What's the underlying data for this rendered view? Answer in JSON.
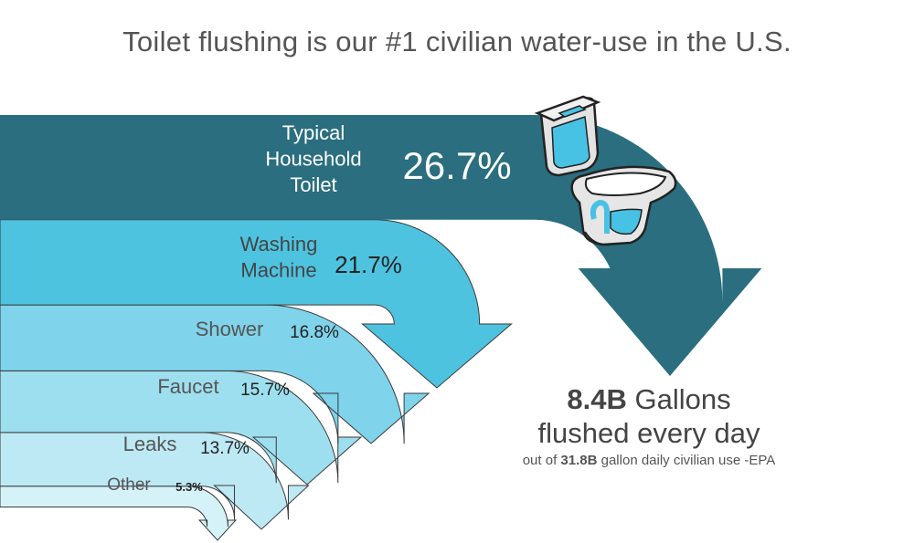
{
  "title": "Toilet flushing is our #1 civilian water-use in the U.S.",
  "chart_data": {
    "type": "bar",
    "unit": "%",
    "categories": [
      "Typical Household Toilet",
      "Washing Machine",
      "Shower",
      "Faucet",
      "Leaks",
      "Other"
    ],
    "labels": [
      [
        "Typical",
        "Household",
        "Toilet"
      ],
      [
        "Washing",
        "Machine"
      ],
      [
        "Shower"
      ],
      [
        "Faucet"
      ],
      [
        "Leaks"
      ],
      [
        "Other"
      ]
    ],
    "values": [
      26.7,
      21.7,
      16.8,
      15.7,
      13.7,
      5.3
    ],
    "value_labels": [
      "26.7%",
      "21.7%",
      "16.8%",
      "15.7%",
      "13.7%",
      "5.3%"
    ],
    "colors": [
      "#2a6e7f",
      "#4ec3e0",
      "#7fd3ea",
      "#9edfef",
      "#bde9f5",
      "#d6f2f9"
    ]
  },
  "summary": {
    "amount": "8.4B",
    "amount_unit": "Gallons",
    "line2": "flushed every day",
    "line3_pre": "out of",
    "line3_amount": "31.8B",
    "line3_post": "gallon daily civilian use -EPA"
  },
  "icon": "toilet-icon"
}
